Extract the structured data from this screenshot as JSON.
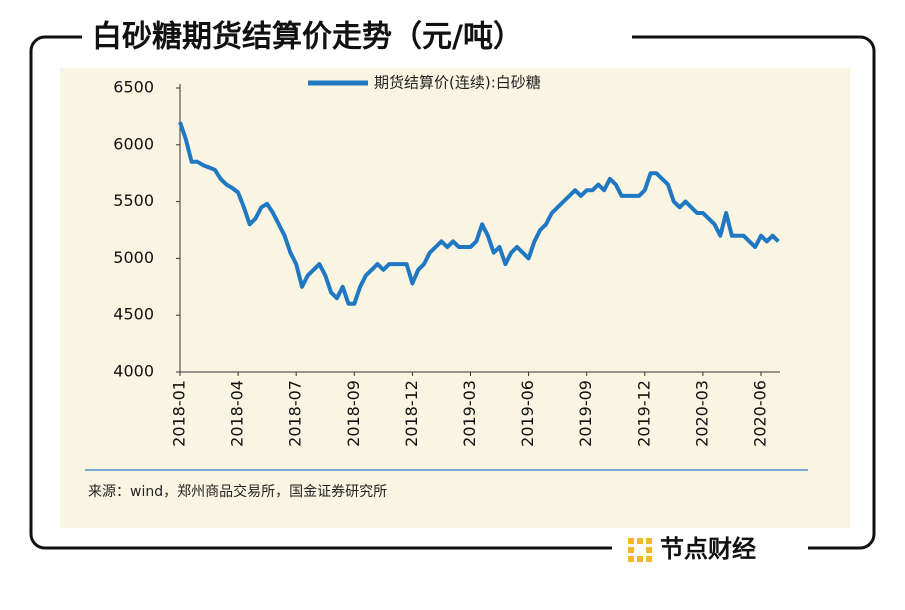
{
  "chart_data": {
    "type": "line",
    "title": "白砂糖期货结算价走势（元/吨）",
    "source": "来源：wind，郑州商品交易所，国金证券研究所",
    "categories": [
      "2018-01",
      null,
      null,
      null,
      null,
      null,
      null,
      null,
      null,
      null,
      "2018-04",
      null,
      null,
      null,
      null,
      null,
      null,
      null,
      null,
      null,
      "2018-07",
      null,
      null,
      null,
      null,
      null,
      null,
      null,
      null,
      null,
      "2018-09",
      null,
      null,
      null,
      null,
      null,
      null,
      null,
      null,
      null,
      "2018-12",
      null,
      null,
      null,
      null,
      null,
      null,
      null,
      null,
      null,
      "2019-03",
      null,
      null,
      null,
      null,
      null,
      null,
      null,
      null,
      null,
      "2019-06",
      null,
      null,
      null,
      null,
      null,
      null,
      null,
      null,
      null,
      "2019-09",
      null,
      null,
      null,
      null,
      null,
      null,
      null,
      null,
      null,
      "2019-12",
      null,
      null,
      null,
      null,
      null,
      null,
      null,
      null,
      null,
      "2020-03",
      null,
      null,
      null,
      null,
      null,
      null,
      null,
      null,
      null,
      "2020-06",
      null,
      null,
      null
    ],
    "series": [
      {
        "name": "期货结算价(连续):白砂糖",
        "color": "#1f78c1",
        "values": [
          6200,
          6050,
          5850,
          5850,
          5820,
          5800,
          5780,
          5700,
          5650,
          5620,
          5580,
          5450,
          5300,
          5350,
          5450,
          5480,
          5400,
          5300,
          5200,
          5050,
          4950,
          4750,
          4850,
          4900,
          4950,
          4850,
          4700,
          4650,
          4750,
          4600,
          4600,
          4750,
          4850,
          4900,
          4950,
          4900,
          4950,
          4950,
          4950,
          4950,
          4780,
          4900,
          4950,
          5050,
          5100,
          5150,
          5100,
          5150,
          5100,
          5100,
          5100,
          5150,
          5300,
          5200,
          5050,
          5100,
          4950,
          5050,
          5100,
          5050,
          5000,
          5150,
          5250,
          5300,
          5400,
          5450,
          5500,
          5550,
          5600,
          5550,
          5600,
          5600,
          5650,
          5600,
          5700,
          5650,
          5550,
          5550,
          5550,
          5550,
          5600,
          5750,
          5750,
          5700,
          5650,
          5500,
          5450,
          5500,
          5450,
          5400,
          5400,
          5350,
          5300,
          5200,
          5400,
          5200,
          5200,
          5200,
          5150,
          5100,
          5200,
          5150,
          5200,
          5150
        ]
      }
    ],
    "ylim": [
      4000,
      6500
    ],
    "yticks": [
      4000,
      4500,
      5000,
      5500,
      6000,
      6500
    ],
    "grid": false
  },
  "watermark": "节点财经"
}
